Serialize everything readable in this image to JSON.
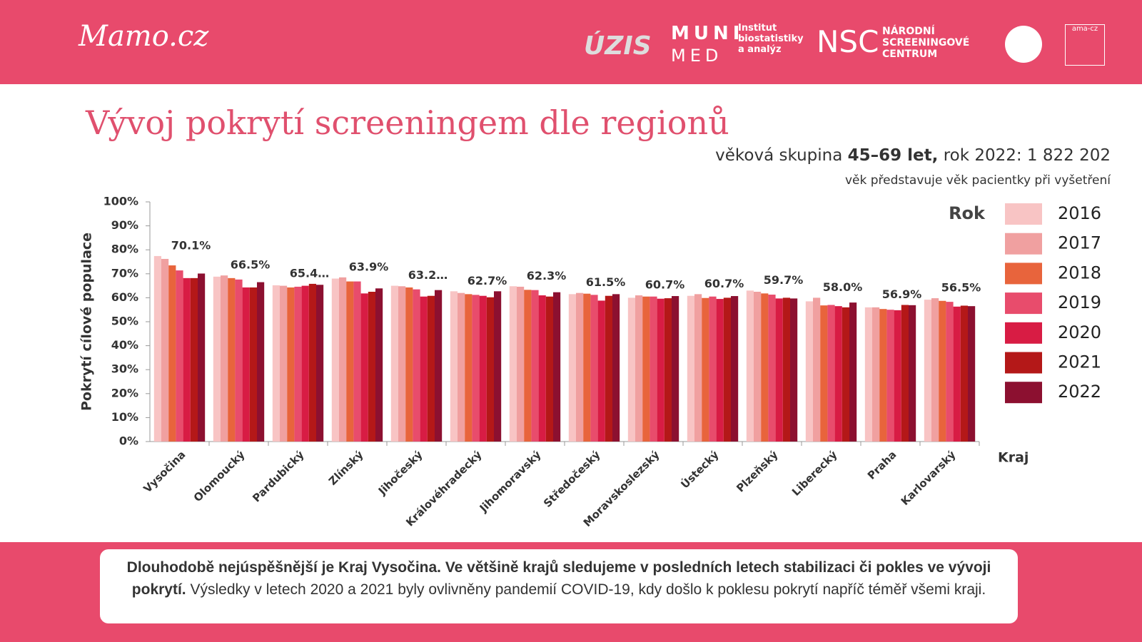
{
  "header": {
    "logos": [
      "Mamo.cz",
      "ÚZIS",
      "MUNI",
      "MED",
      "Institut biostatistiky a analýz",
      "NSC",
      "NÁRODNÍ SCREENINGOVÉ CENTRUM",
      "ama-cz"
    ]
  },
  "title": "Vývoj pokrytí screeningem dle regionů",
  "subtitle": {
    "parts": [
      "věková skupina",
      "45–69 let,",
      "rok 2022: 1 822 202"
    ],
    "note": "věk představuje věk pacientky při vyšetření"
  },
  "chart_data": {
    "type": "bar",
    "y_label": "Pokrytí cílové populace",
    "x_label": "Kraj",
    "legend_title": "Rok",
    "legend": "right",
    "categories": [
      "Vysočina",
      "Olomoucký",
      "Pardubický",
      "Zlínský",
      "Jihočeský",
      "Královéhradecký",
      "Jihomoravský",
      "Středočeský",
      "Moravskoslezský",
      "Ústecký",
      "Plzeňský",
      "Liberecký",
      "Praha",
      "Karlovarský"
    ],
    "ylim": [
      0,
      100
    ],
    "yticks": [
      {
        "value": 0,
        "label": "0%"
      },
      {
        "value": 10,
        "label": "10%"
      },
      {
        "value": 20,
        "label": "20%"
      },
      {
        "value": 30,
        "label": "30%"
      },
      {
        "value": 40,
        "label": "40%"
      },
      {
        "value": 50,
        "label": "50%"
      },
      {
        "value": 60,
        "label": "60%"
      },
      {
        "value": 70,
        "label": "70%"
      },
      {
        "value": 80,
        "label": "80%"
      },
      {
        "value": 90,
        "label": "90%"
      },
      {
        "value": 100,
        "label": "100%"
      }
    ],
    "series": [
      {
        "name": "2016",
        "color": "#f8c4c4",
        "values": [
          77.4,
          68.8,
          65.2,
          68.0,
          65.0,
          62.7,
          64.8,
          61.5,
          60.0,
          60.8,
          63.0,
          58.5,
          56.0,
          59.2
        ]
      },
      {
        "name": "2017",
        "color": "#f0a0a0",
        "values": [
          76.2,
          69.3,
          65.0,
          68.5,
          64.8,
          62.0,
          64.6,
          62.0,
          61.0,
          61.5,
          62.5,
          60.0,
          56.0,
          59.8
        ]
      },
      {
        "name": "2018",
        "color": "#e8643c",
        "values": [
          73.5,
          68.2,
          64.3,
          66.8,
          64.3,
          61.5,
          63.3,
          61.7,
          60.5,
          59.9,
          61.8,
          56.8,
          55.3,
          58.7
        ]
      },
      {
        "name": "2019",
        "color": "#e84c6c",
        "values": [
          71.4,
          67.6,
          64.6,
          66.8,
          63.5,
          61.2,
          63.2,
          61.2,
          60.5,
          60.5,
          61.3,
          57.0,
          55.0,
          58.3
        ]
      },
      {
        "name": "2020",
        "color": "#d81c44",
        "values": [
          68.2,
          64.3,
          65.0,
          61.8,
          60.5,
          60.8,
          61.0,
          58.8,
          59.6,
          59.5,
          59.7,
          56.5,
          54.8,
          56.3
        ]
      },
      {
        "name": "2021",
        "color": "#b41818",
        "values": [
          68.2,
          64.3,
          65.8,
          62.5,
          60.8,
          60.2,
          60.5,
          60.8,
          59.8,
          60.0,
          60.0,
          56.0,
          57.0,
          56.7
        ]
      },
      {
        "name": "2022",
        "color": "#8c1030",
        "values": [
          70.1,
          66.5,
          65.4,
          63.9,
          63.2,
          62.7,
          62.3,
          61.5,
          60.7,
          60.7,
          59.7,
          58.0,
          56.9,
          56.5
        ],
        "value_labels": [
          "70.1%",
          "66.5%",
          "65.4…",
          "63.9%",
          "63.2…",
          "62.7%",
          "62.3%",
          "61.5%",
          "60.7%",
          "60.7%",
          "59.7%",
          "58.0%",
          "56.9%",
          "56.5%"
        ]
      }
    ]
  },
  "footer": {
    "bold": "Dlouhodobě nejúspěšnější je Kraj Vysočina. Ve většině krajů sledujeme v posledních letech stabilizaci či pokles ve vývoji pokrytí.",
    "text": "Výsledky v letech 2020 a 2021 byly ovlivněny pandemií COVID-19, kdy došlo k poklesu pokrytí napříč téměř všemi kraji."
  }
}
